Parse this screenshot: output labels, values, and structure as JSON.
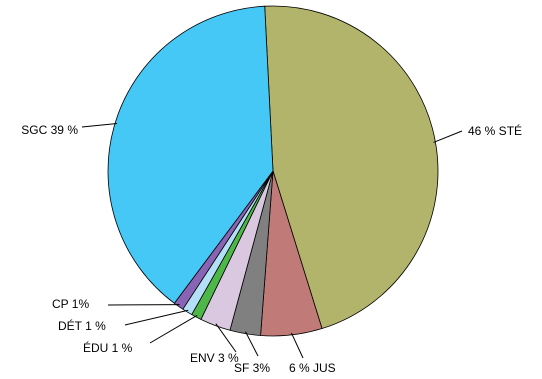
{
  "chart_data": {
    "type": "pie",
    "title": "",
    "slices": [
      {
        "label": "46 % STÉ",
        "value": 46,
        "color": "#b1b46a"
      },
      {
        "label": "6 % JUS",
        "value": 6,
        "color": "#c07b78"
      },
      {
        "label": "SF 3%",
        "value": 3,
        "color": "#808080"
      },
      {
        "label": "ENV 3 %",
        "value": 3,
        "color": "#d9c8e0"
      },
      {
        "label": "ÉDU 1 %",
        "value": 1,
        "color": "#4db848"
      },
      {
        "label": "DÉT 1 %",
        "value": 1,
        "color": "#b3e0f7"
      },
      {
        "label": "CP 1%",
        "value": 1,
        "color": "#8a64b4"
      },
      {
        "label": "SGC 39 %",
        "value": 39,
        "color": "#45c8f5"
      }
    ],
    "legend": "none"
  }
}
